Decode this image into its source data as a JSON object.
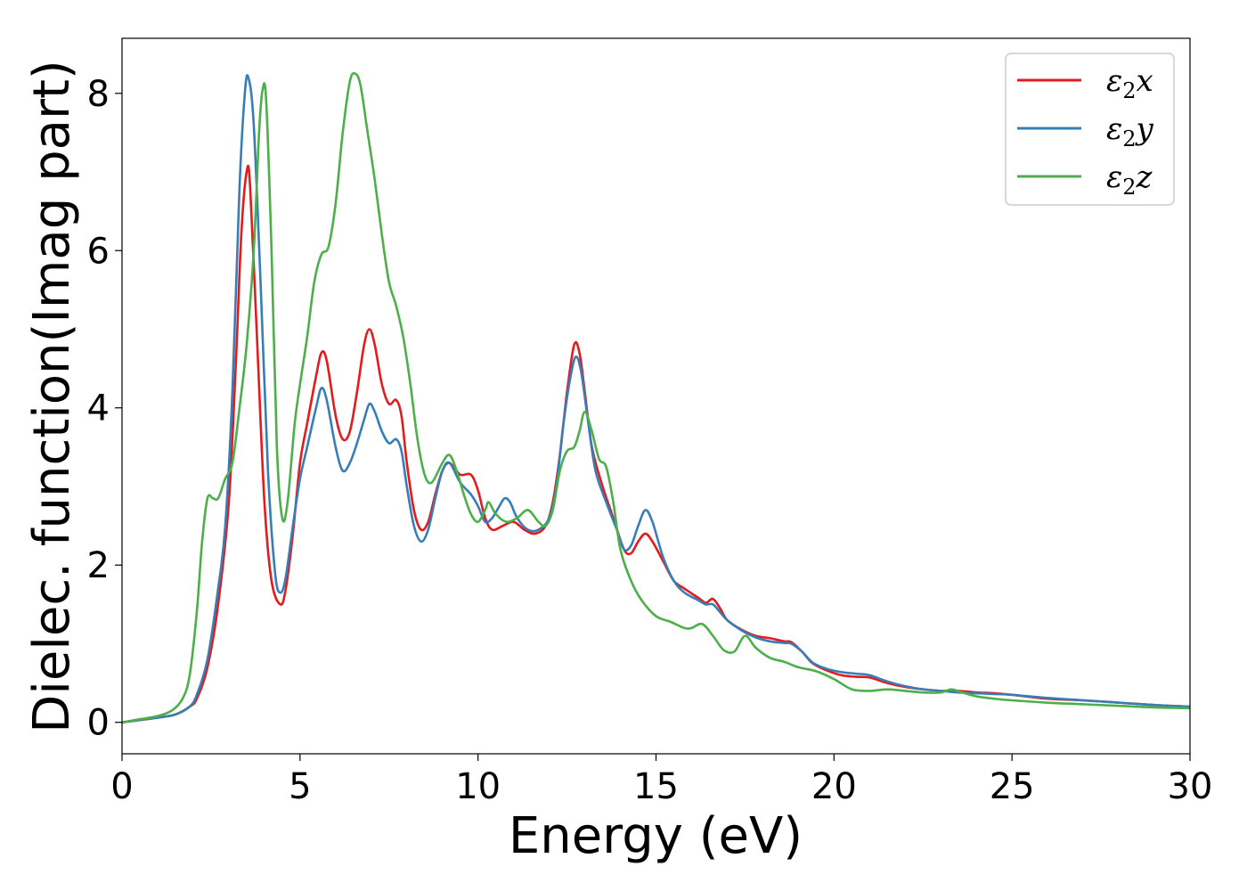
{
  "chart_data": {
    "type": "line",
    "title": "",
    "xlabel": "Energy (eV)",
    "ylabel": "Dielec. function(Imag part)",
    "xlim": [
      0,
      30
    ],
    "ylim": [
      -0.4,
      8.7
    ],
    "xticks": [
      0,
      5,
      10,
      15,
      20,
      25,
      30
    ],
    "yticks": [
      0,
      2,
      4,
      6,
      8
    ],
    "grid": false,
    "legend_position": "top-right",
    "series": [
      {
        "name": "ε2x",
        "legend_main": "ε",
        "legend_sub": "2",
        "legend_suffix": "x",
        "color": "#e41a1c",
        "points": [
          [
            0,
            0
          ],
          [
            0.5,
            0.03
          ],
          [
            1,
            0.06
          ],
          [
            1.5,
            0.1
          ],
          [
            1.9,
            0.2
          ],
          [
            2.1,
            0.3
          ],
          [
            2.4,
            0.7
          ],
          [
            2.7,
            1.5
          ],
          [
            3.0,
            2.8
          ],
          [
            3.2,
            4.6
          ],
          [
            3.35,
            6.2
          ],
          [
            3.5,
            7.0
          ],
          [
            3.6,
            6.8
          ],
          [
            3.8,
            4.8
          ],
          [
            4.0,
            2.8
          ],
          [
            4.2,
            1.8
          ],
          [
            4.45,
            1.5
          ],
          [
            4.6,
            1.7
          ],
          [
            4.8,
            2.4
          ],
          [
            5.0,
            3.3
          ],
          [
            5.2,
            3.8
          ],
          [
            5.45,
            4.4
          ],
          [
            5.6,
            4.7
          ],
          [
            5.75,
            4.6
          ],
          [
            6.0,
            3.9
          ],
          [
            6.2,
            3.6
          ],
          [
            6.4,
            3.7
          ],
          [
            6.6,
            4.2
          ],
          [
            6.8,
            4.8
          ],
          [
            6.95,
            5.0
          ],
          [
            7.1,
            4.8
          ],
          [
            7.3,
            4.3
          ],
          [
            7.5,
            4.05
          ],
          [
            7.7,
            4.1
          ],
          [
            7.85,
            3.9
          ],
          [
            8.0,
            3.3
          ],
          [
            8.2,
            2.7
          ],
          [
            8.4,
            2.45
          ],
          [
            8.6,
            2.55
          ],
          [
            8.8,
            2.9
          ],
          [
            9.0,
            3.2
          ],
          [
            9.2,
            3.3
          ],
          [
            9.5,
            3.15
          ],
          [
            9.8,
            3.15
          ],
          [
            10.0,
            2.95
          ],
          [
            10.2,
            2.6
          ],
          [
            10.4,
            2.45
          ],
          [
            10.7,
            2.5
          ],
          [
            11.0,
            2.55
          ],
          [
            11.3,
            2.45
          ],
          [
            11.6,
            2.4
          ],
          [
            11.9,
            2.5
          ],
          [
            12.1,
            2.8
          ],
          [
            12.3,
            3.4
          ],
          [
            12.5,
            4.2
          ],
          [
            12.7,
            4.8
          ],
          [
            12.85,
            4.7
          ],
          [
            13.0,
            4.2
          ],
          [
            13.2,
            3.5
          ],
          [
            13.5,
            3.0
          ],
          [
            13.8,
            2.6
          ],
          [
            14.1,
            2.2
          ],
          [
            14.3,
            2.15
          ],
          [
            14.5,
            2.3
          ],
          [
            14.7,
            2.4
          ],
          [
            14.9,
            2.3
          ],
          [
            15.2,
            2.05
          ],
          [
            15.5,
            1.8
          ],
          [
            15.8,
            1.7
          ],
          [
            16.2,
            1.58
          ],
          [
            16.4,
            1.52
          ],
          [
            16.6,
            1.57
          ],
          [
            16.8,
            1.45
          ],
          [
            17.0,
            1.3
          ],
          [
            17.4,
            1.18
          ],
          [
            17.8,
            1.1
          ],
          [
            18.2,
            1.07
          ],
          [
            18.6,
            1.03
          ],
          [
            18.8,
            1.02
          ],
          [
            19.1,
            0.9
          ],
          [
            19.4,
            0.75
          ],
          [
            19.8,
            0.66
          ],
          [
            20.2,
            0.6
          ],
          [
            20.6,
            0.58
          ],
          [
            21.0,
            0.57
          ],
          [
            21.5,
            0.5
          ],
          [
            22.0,
            0.45
          ],
          [
            22.5,
            0.42
          ],
          [
            23.0,
            0.4
          ],
          [
            23.5,
            0.4
          ],
          [
            24.0,
            0.38
          ],
          [
            24.5,
            0.37
          ],
          [
            25.0,
            0.35
          ],
          [
            26.0,
            0.3
          ],
          [
            27.0,
            0.28
          ],
          [
            28.0,
            0.25
          ],
          [
            29.0,
            0.22
          ],
          [
            30.0,
            0.2
          ]
        ]
      },
      {
        "name": "ε2y",
        "legend_main": "ε",
        "legend_sub": "2",
        "legend_suffix": "y",
        "color": "#377eb8",
        "points": [
          [
            0,
            0
          ],
          [
            0.5,
            0.03
          ],
          [
            1,
            0.06
          ],
          [
            1.5,
            0.1
          ],
          [
            1.9,
            0.2
          ],
          [
            2.1,
            0.35
          ],
          [
            2.4,
            0.8
          ],
          [
            2.7,
            1.7
          ],
          [
            2.9,
            2.5
          ],
          [
            3.1,
            4.2
          ],
          [
            3.3,
            6.8
          ],
          [
            3.45,
            8.0
          ],
          [
            3.55,
            8.2
          ],
          [
            3.7,
            7.6
          ],
          [
            3.9,
            5.5
          ],
          [
            4.1,
            3.2
          ],
          [
            4.3,
            1.9
          ],
          [
            4.45,
            1.65
          ],
          [
            4.6,
            1.85
          ],
          [
            4.8,
            2.5
          ],
          [
            5.0,
            3.1
          ],
          [
            5.2,
            3.5
          ],
          [
            5.45,
            4.0
          ],
          [
            5.6,
            4.25
          ],
          [
            5.75,
            4.1
          ],
          [
            6.0,
            3.5
          ],
          [
            6.2,
            3.2
          ],
          [
            6.4,
            3.3
          ],
          [
            6.6,
            3.55
          ],
          [
            6.8,
            3.85
          ],
          [
            6.95,
            4.05
          ],
          [
            7.1,
            3.95
          ],
          [
            7.3,
            3.7
          ],
          [
            7.5,
            3.55
          ],
          [
            7.7,
            3.6
          ],
          [
            7.85,
            3.45
          ],
          [
            8.0,
            3.0
          ],
          [
            8.2,
            2.5
          ],
          [
            8.4,
            2.3
          ],
          [
            8.6,
            2.45
          ],
          [
            8.8,
            2.85
          ],
          [
            9.0,
            3.2
          ],
          [
            9.2,
            3.3
          ],
          [
            9.5,
            3.05
          ],
          [
            9.8,
            2.9
          ],
          [
            10.0,
            2.75
          ],
          [
            10.2,
            2.55
          ],
          [
            10.4,
            2.6
          ],
          [
            10.6,
            2.75
          ],
          [
            10.75,
            2.85
          ],
          [
            10.9,
            2.8
          ],
          [
            11.1,
            2.6
          ],
          [
            11.4,
            2.45
          ],
          [
            11.7,
            2.45
          ],
          [
            12.0,
            2.6
          ],
          [
            12.2,
            3.0
          ],
          [
            12.4,
            3.8
          ],
          [
            12.6,
            4.4
          ],
          [
            12.75,
            4.65
          ],
          [
            12.9,
            4.45
          ],
          [
            13.1,
            3.8
          ],
          [
            13.3,
            3.2
          ],
          [
            13.6,
            2.8
          ],
          [
            13.9,
            2.45
          ],
          [
            14.1,
            2.2
          ],
          [
            14.3,
            2.25
          ],
          [
            14.5,
            2.5
          ],
          [
            14.7,
            2.7
          ],
          [
            14.9,
            2.55
          ],
          [
            15.2,
            2.1
          ],
          [
            15.5,
            1.8
          ],
          [
            15.8,
            1.65
          ],
          [
            16.2,
            1.55
          ],
          [
            16.4,
            1.5
          ],
          [
            16.6,
            1.5
          ],
          [
            16.8,
            1.4
          ],
          [
            17.0,
            1.3
          ],
          [
            17.4,
            1.17
          ],
          [
            17.8,
            1.08
          ],
          [
            18.2,
            1.03
          ],
          [
            18.6,
            1.01
          ],
          [
            18.8,
            1.0
          ],
          [
            19.1,
            0.9
          ],
          [
            19.4,
            0.76
          ],
          [
            19.8,
            0.68
          ],
          [
            20.2,
            0.64
          ],
          [
            20.6,
            0.62
          ],
          [
            21.0,
            0.6
          ],
          [
            21.5,
            0.52
          ],
          [
            22.0,
            0.46
          ],
          [
            22.5,
            0.42
          ],
          [
            23.0,
            0.4
          ],
          [
            23.5,
            0.38
          ],
          [
            24.0,
            0.37
          ],
          [
            24.5,
            0.36
          ],
          [
            25.0,
            0.35
          ],
          [
            26.0,
            0.31
          ],
          [
            27.0,
            0.28
          ],
          [
            28.0,
            0.25
          ],
          [
            29.0,
            0.22
          ],
          [
            30.0,
            0.2
          ]
        ]
      },
      {
        "name": "ε2z",
        "legend_main": "ε",
        "legend_sub": "2",
        "legend_suffix": "z",
        "color": "#4daf4a",
        "points": [
          [
            0,
            0
          ],
          [
            0.5,
            0.04
          ],
          [
            1,
            0.08
          ],
          [
            1.4,
            0.15
          ],
          [
            1.7,
            0.3
          ],
          [
            1.9,
            0.6
          ],
          [
            2.1,
            1.4
          ],
          [
            2.25,
            2.3
          ],
          [
            2.4,
            2.85
          ],
          [
            2.55,
            2.85
          ],
          [
            2.7,
            2.85
          ],
          [
            2.9,
            3.1
          ],
          [
            3.1,
            3.3
          ],
          [
            3.3,
            4.0
          ],
          [
            3.5,
            4.8
          ],
          [
            3.7,
            6.0
          ],
          [
            3.85,
            7.5
          ],
          [
            3.95,
            8.05
          ],
          [
            4.05,
            7.9
          ],
          [
            4.2,
            6.0
          ],
          [
            4.35,
            3.5
          ],
          [
            4.5,
            2.6
          ],
          [
            4.65,
            2.8
          ],
          [
            4.85,
            3.8
          ],
          [
            5.0,
            4.3
          ],
          [
            5.2,
            4.9
          ],
          [
            5.4,
            5.6
          ],
          [
            5.6,
            5.95
          ],
          [
            5.8,
            6.05
          ],
          [
            6.0,
            6.6
          ],
          [
            6.2,
            7.5
          ],
          [
            6.4,
            8.15
          ],
          [
            6.55,
            8.25
          ],
          [
            6.7,
            8.1
          ],
          [
            6.9,
            7.5
          ],
          [
            7.1,
            6.9
          ],
          [
            7.3,
            6.2
          ],
          [
            7.5,
            5.6
          ],
          [
            7.7,
            5.3
          ],
          [
            7.9,
            4.9
          ],
          [
            8.1,
            4.3
          ],
          [
            8.3,
            3.6
          ],
          [
            8.5,
            3.15
          ],
          [
            8.7,
            3.05
          ],
          [
            9.0,
            3.3
          ],
          [
            9.2,
            3.4
          ],
          [
            9.4,
            3.2
          ],
          [
            9.6,
            2.9
          ],
          [
            9.8,
            2.65
          ],
          [
            10.0,
            2.55
          ],
          [
            10.2,
            2.7
          ],
          [
            10.3,
            2.8
          ],
          [
            10.5,
            2.65
          ],
          [
            10.8,
            2.55
          ],
          [
            11.1,
            2.6
          ],
          [
            11.4,
            2.7
          ],
          [
            11.7,
            2.55
          ],
          [
            11.9,
            2.5
          ],
          [
            12.1,
            2.7
          ],
          [
            12.3,
            3.2
          ],
          [
            12.5,
            3.45
          ],
          [
            12.7,
            3.5
          ],
          [
            12.85,
            3.7
          ],
          [
            13.0,
            3.95
          ],
          [
            13.2,
            3.7
          ],
          [
            13.4,
            3.35
          ],
          [
            13.6,
            3.25
          ],
          [
            13.8,
            2.8
          ],
          [
            14.0,
            2.2
          ],
          [
            14.3,
            1.8
          ],
          [
            14.6,
            1.55
          ],
          [
            15.0,
            1.35
          ],
          [
            15.4,
            1.28
          ],
          [
            15.8,
            1.2
          ],
          [
            16.0,
            1.2
          ],
          [
            16.3,
            1.25
          ],
          [
            16.6,
            1.1
          ],
          [
            16.9,
            0.92
          ],
          [
            17.2,
            0.9
          ],
          [
            17.5,
            1.1
          ],
          [
            17.8,
            0.95
          ],
          [
            18.2,
            0.82
          ],
          [
            18.6,
            0.77
          ],
          [
            19.0,
            0.7
          ],
          [
            19.5,
            0.65
          ],
          [
            20.0,
            0.55
          ],
          [
            20.5,
            0.42
          ],
          [
            21.0,
            0.4
          ],
          [
            21.5,
            0.42
          ],
          [
            22.0,
            0.4
          ],
          [
            22.5,
            0.38
          ],
          [
            23.0,
            0.38
          ],
          [
            23.3,
            0.42
          ],
          [
            23.6,
            0.38
          ],
          [
            24.0,
            0.33
          ],
          [
            24.5,
            0.3
          ],
          [
            25.0,
            0.28
          ],
          [
            26.0,
            0.25
          ],
          [
            27.0,
            0.23
          ],
          [
            28.0,
            0.21
          ],
          [
            29.0,
            0.19
          ],
          [
            30.0,
            0.18
          ]
        ]
      }
    ]
  }
}
